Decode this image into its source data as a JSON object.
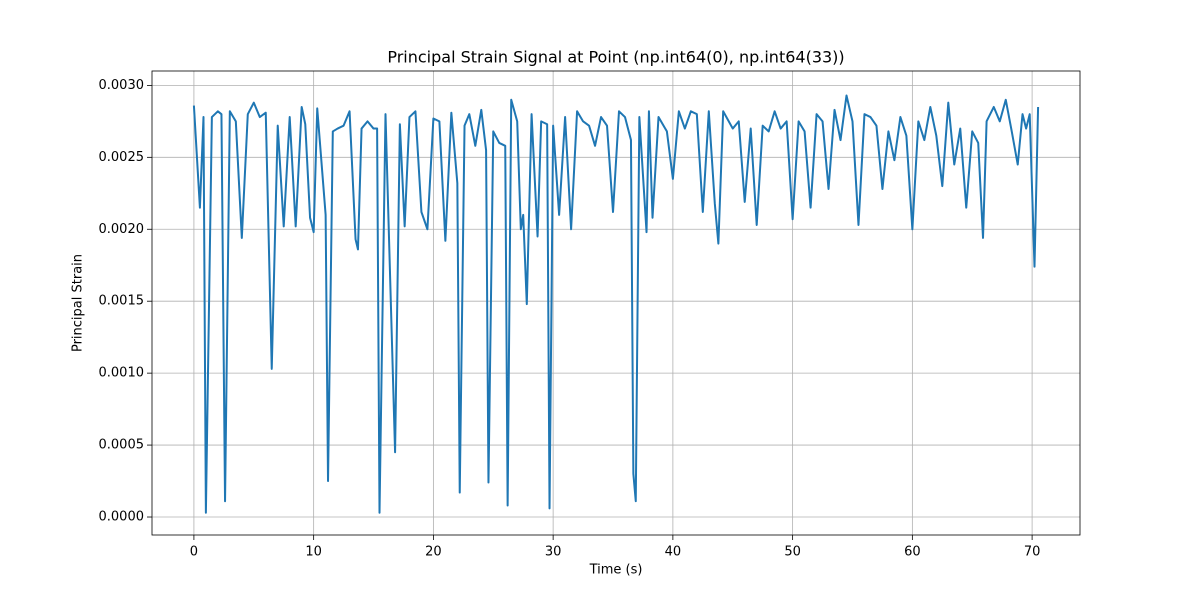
{
  "chart_data": {
    "type": "line",
    "title": "Principal Strain Signal at Point (np.int64(0), np.int64(33))",
    "x_label": "Time (s)",
    "y_label": "Principal Strain",
    "color": "#1f77b4",
    "grid": true,
    "xlim": [
      -3.5,
      74.0
    ],
    "ylim": [
      -0.000125,
      0.0031
    ],
    "xticks": [
      0,
      10,
      20,
      30,
      40,
      50,
      60,
      70
    ],
    "yticks": [
      {
        "value": 0,
        "label": "0.0000"
      },
      {
        "value": 0.0005,
        "label": "0.0005"
      },
      {
        "value": 0.001,
        "label": "0.0010"
      },
      {
        "value": 0.0015,
        "label": "0.0015"
      },
      {
        "value": 0.002,
        "label": "0.0020"
      },
      {
        "value": 0.0025,
        "label": "0.0025"
      },
      {
        "value": 0.003,
        "label": "0.0030"
      }
    ],
    "x": [
      0,
      0.5,
      0.8,
      1.0,
      1.5,
      2.0,
      2.3,
      2.6,
      3.0,
      3.5,
      4.0,
      4.5,
      5.0,
      5.5,
      6.0,
      6.5,
      7.0,
      7.5,
      8.0,
      8.5,
      9.0,
      9.3,
      9.7,
      10.0,
      10.3,
      11.0,
      11.2,
      11.6,
      12.0,
      12.5,
      13.0,
      13.5,
      13.7,
      14.0,
      14.5,
      15.0,
      15.3,
      15.5,
      16.0,
      16.8,
      17.2,
      17.6,
      18.0,
      18.5,
      19.0,
      19.5,
      20.0,
      20.5,
      21.0,
      21.5,
      22.0,
      22.2,
      22.6,
      23.0,
      23.5,
      24.0,
      24.4,
      24.6,
      25.0,
      25.5,
      26.0,
      26.2,
      26.5,
      27.0,
      27.3,
      27.5,
      27.8,
      28.2,
      28.7,
      29.0,
      29.5,
      29.7,
      30.0,
      30.5,
      31.0,
      31.5,
      32.0,
      32.5,
      33.0,
      33.5,
      34.0,
      34.5,
      35.0,
      35.5,
      36.0,
      36.5,
      36.7,
      36.9,
      37.2,
      37.8,
      38.0,
      38.3,
      38.8,
      39.5,
      40.0,
      40.5,
      41.0,
      41.5,
      42.0,
      42.5,
      43.0,
      43.5,
      43.8,
      44.2,
      45.0,
      45.5,
      46.0,
      46.5,
      47.0,
      47.5,
      48.0,
      48.5,
      49.0,
      49.5,
      50.0,
      50.5,
      51.0,
      51.5,
      52.0,
      52.5,
      53.0,
      53.5,
      54.0,
      54.5,
      55.0,
      55.5,
      56.0,
      56.5,
      57.0,
      57.5,
      58.0,
      58.5,
      59.0,
      59.5,
      60.0,
      60.5,
      61.0,
      61.5,
      62.0,
      62.5,
      63.0,
      63.5,
      64.0,
      64.5,
      65.0,
      65.5,
      65.9,
      66.2,
      66.8,
      67.3,
      67.8,
      68.3,
      68.8,
      69.2,
      69.5,
      69.8,
      70.2,
      70.5
    ],
    "values": [
      0.00286,
      0.00215,
      0.00278,
      3e-05,
      0.00278,
      0.00282,
      0.0028,
      0.00011,
      0.00282,
      0.00275,
      0.00194,
      0.0028,
      0.00288,
      0.00278,
      0.00281,
      0.00103,
      0.00272,
      0.00202,
      0.00278,
      0.00202,
      0.00285,
      0.00273,
      0.00208,
      0.00198,
      0.00284,
      0.0021,
      0.00025,
      0.00268,
      0.0027,
      0.00272,
      0.00282,
      0.00193,
      0.00186,
      0.0027,
      0.00275,
      0.0027,
      0.0027,
      3e-05,
      0.0028,
      0.00045,
      0.00273,
      0.00202,
      0.00278,
      0.00282,
      0.00212,
      0.002,
      0.00277,
      0.00275,
      0.00192,
      0.00281,
      0.00232,
      0.00017,
      0.00272,
      0.0028,
      0.00258,
      0.00283,
      0.00255,
      0.00024,
      0.00268,
      0.0026,
      0.00258,
      8e-05,
      0.0029,
      0.00275,
      0.002,
      0.0021,
      0.00148,
      0.0028,
      0.00195,
      0.00275,
      0.00273,
      6e-05,
      0.00272,
      0.0021,
      0.00278,
      0.002,
      0.00282,
      0.00275,
      0.00272,
      0.00258,
      0.00278,
      0.00272,
      0.00212,
      0.00282,
      0.00278,
      0.00262,
      0.0003,
      0.00011,
      0.00278,
      0.00198,
      0.00282,
      0.00208,
      0.00278,
      0.00268,
      0.00235,
      0.00282,
      0.0027,
      0.00282,
      0.0028,
      0.00212,
      0.00282,
      0.00218,
      0.0019,
      0.00282,
      0.0027,
      0.00275,
      0.00219,
      0.0027,
      0.00203,
      0.00272,
      0.00268,
      0.00282,
      0.0027,
      0.00275,
      0.00207,
      0.00275,
      0.00268,
      0.00215,
      0.0028,
      0.00275,
      0.00228,
      0.00283,
      0.00262,
      0.00293,
      0.00275,
      0.00203,
      0.0028,
      0.00278,
      0.00272,
      0.00228,
      0.00268,
      0.00248,
      0.00278,
      0.00265,
      0.002,
      0.00275,
      0.00262,
      0.00285,
      0.00265,
      0.0023,
      0.00288,
      0.00245,
      0.0027,
      0.00215,
      0.00268,
      0.0026,
      0.00194,
      0.00275,
      0.00285,
      0.00275,
      0.0029,
      0.00268,
      0.00245,
      0.0028,
      0.0027,
      0.0028,
      0.00174,
      0.00285
    ]
  }
}
